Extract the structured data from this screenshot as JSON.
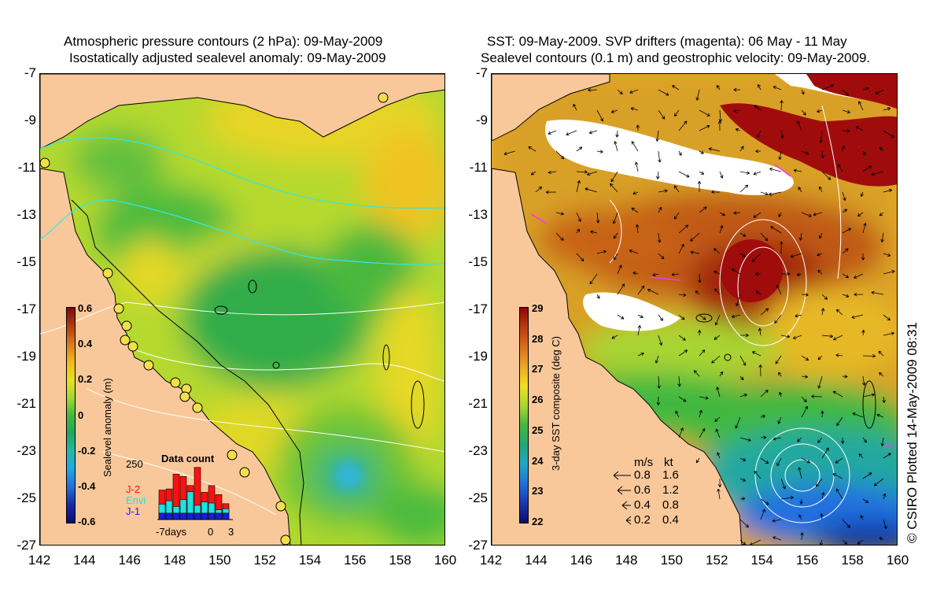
{
  "left_panel": {
    "title_line1": "Atmospheric pressure contours (2 hPa): 09-May-2009",
    "title_line2": "Isostatically adjusted sealevel anomaly: 09-May-2009",
    "colorbar": {
      "label": "Sealevel anomaly (m)",
      "ticks": [
        "0.6",
        "0.4",
        "0.2",
        "0",
        "-0.2",
        "-0.4",
        "-0.6"
      ],
      "colors": [
        "#7a0a0a",
        "#b03c10",
        "#d8781c",
        "#f0b81e",
        "#e8e020",
        "#a8d830",
        "#44b840",
        "#23a65e",
        "#22b9a8",
        "#20a8e0",
        "#2070d8",
        "#1828a8",
        "#0c0c70"
      ]
    },
    "data_count": {
      "title": "Data count",
      "max_label": "250",
      "legend": [
        {
          "name": "J-2",
          "color": "#ff1010"
        },
        {
          "name": "Envi",
          "color": "#20e0e0"
        },
        {
          "name": "J-1",
          "color": "#1020e0"
        }
      ],
      "x_labels": [
        "-7days",
        "0",
        "3"
      ],
      "bars_envi": [
        40,
        55,
        30,
        60,
        95,
        35,
        50,
        45,
        15,
        20
      ],
      "bars_total": [
        130,
        135,
        200,
        190,
        150,
        230,
        120,
        150,
        110,
        70
      ]
    }
  },
  "right_panel": {
    "title_line1": "SST: 09-May-2009. SVP drifters (magenta): 06 May - 11 May",
    "title_line2": "Sealevel contours (0.1 m) and geostrophic velocity: 09-May-2009.",
    "colorbar": {
      "label": "3-day SST composite (deg C)",
      "ticks": [
        "29",
        "28",
        "27",
        "26",
        "25",
        "24",
        "23",
        "22"
      ],
      "colors": [
        "#8c0a0a",
        "#b83a10",
        "#d87020",
        "#e8a828",
        "#f0e020",
        "#a8d830",
        "#44b840",
        "#20a878",
        "#20a8c8",
        "#2070e0",
        "#1838b0",
        "#0c0c70"
      ]
    },
    "velocity_legend": {
      "header_ms": "m/s",
      "header_kt": "kt",
      "rows": [
        {
          "ms": "0.8",
          "kt": "1.6"
        },
        {
          "ms": "0.6",
          "kt": "1.2"
        },
        {
          "ms": "0.4",
          "kt": "0.8"
        },
        {
          "ms": "0.2",
          "kt": "0.4"
        }
      ]
    }
  },
  "axes": {
    "y_ticks": [
      "-7",
      "-9",
      "-11",
      "-13",
      "-15",
      "-17",
      "-19",
      "-21",
      "-23",
      "-25",
      "-27"
    ],
    "x_ticks": [
      "142",
      "144",
      "146",
      "148",
      "150",
      "152",
      "154",
      "156",
      "158",
      "160"
    ]
  },
  "colors": {
    "land": "#f9c89a",
    "coast": "#000000",
    "pressure_contour": "#30e8e8",
    "sea_contour": "#ffffff",
    "drifter": "#ff30ff",
    "cloud": "#ffffff"
  },
  "copyright": "© CSIRO Plotted 14-May-2009 08:31"
}
